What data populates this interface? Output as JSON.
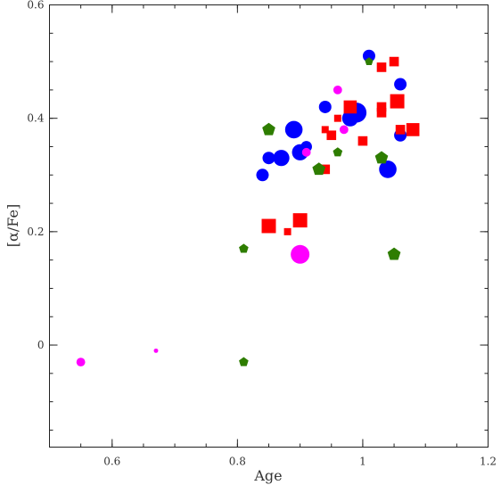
{
  "chart_data": {
    "type": "scatter",
    "title": "",
    "xlabel": "Age",
    "ylabel": "[α/Fe]",
    "xlim": [
      0.5,
      1.2
    ],
    "ylim": [
      -0.18,
      0.6
    ],
    "grid": false,
    "x_ticks": [
      0.6,
      0.8,
      1,
      1.2
    ],
    "x_tick_labels": [
      "0.6",
      "0.8",
      "1",
      "1.2"
    ],
    "x_minor_step": 0.05,
    "y_ticks": [
      0,
      0.2,
      0.4,
      0.6
    ],
    "y_tick_labels": [
      "0",
      "0.2",
      "0.4",
      "0.6"
    ],
    "y_minor_step": 0.05,
    "series": [
      {
        "marker": "circle",
        "color": "#0000ff",
        "points": [
          {
            "x": 1.01,
            "y": 0.51,
            "size": 1.0
          },
          {
            "x": 1.06,
            "y": 0.46,
            "size": 1.0
          },
          {
            "x": 0.94,
            "y": 0.42,
            "size": 1.0
          },
          {
            "x": 0.99,
            "y": 0.41,
            "size": 1.6
          },
          {
            "x": 0.98,
            "y": 0.4,
            "size": 1.3
          },
          {
            "x": 0.89,
            "y": 0.38,
            "size": 1.4
          },
          {
            "x": 1.06,
            "y": 0.37,
            "size": 1.0
          },
          {
            "x": 0.91,
            "y": 0.35,
            "size": 0.9
          },
          {
            "x": 0.9,
            "y": 0.34,
            "size": 1.3
          },
          {
            "x": 0.85,
            "y": 0.33,
            "size": 1.0
          },
          {
            "x": 0.87,
            "y": 0.33,
            "size": 1.3
          },
          {
            "x": 1.04,
            "y": 0.31,
            "size": 1.4
          },
          {
            "x": 0.84,
            "y": 0.3,
            "size": 1.0
          }
        ]
      },
      {
        "marker": "square",
        "color": "#ff0000",
        "points": [
          {
            "x": 1.05,
            "y": 0.5,
            "size": 0.8
          },
          {
            "x": 1.03,
            "y": 0.49,
            "size": 0.8
          },
          {
            "x": 1.055,
            "y": 0.43,
            "size": 1.2
          },
          {
            "x": 0.98,
            "y": 0.42,
            "size": 1.1
          },
          {
            "x": 1.03,
            "y": 0.42,
            "size": 0.8
          },
          {
            "x": 1.03,
            "y": 0.41,
            "size": 0.8
          },
          {
            "x": 0.96,
            "y": 0.4,
            "size": 0.6
          },
          {
            "x": 0.94,
            "y": 0.38,
            "size": 0.6
          },
          {
            "x": 1.06,
            "y": 0.38,
            "size": 0.8
          },
          {
            "x": 1.08,
            "y": 0.38,
            "size": 1.1
          },
          {
            "x": 0.95,
            "y": 0.37,
            "size": 0.8
          },
          {
            "x": 1.0,
            "y": 0.36,
            "size": 0.8
          },
          {
            "x": 0.94,
            "y": 0.31,
            "size": 0.8
          },
          {
            "x": 0.9,
            "y": 0.22,
            "size": 1.2
          },
          {
            "x": 0.85,
            "y": 0.21,
            "size": 1.2
          },
          {
            "x": 0.88,
            "y": 0.2,
            "size": 0.6
          }
        ]
      },
      {
        "marker": "circle",
        "color": "#ff00ff",
        "points": [
          {
            "x": 0.96,
            "y": 0.45,
            "size": 0.7
          },
          {
            "x": 0.97,
            "y": 0.38,
            "size": 0.7
          },
          {
            "x": 0.91,
            "y": 0.34,
            "size": 0.7
          },
          {
            "x": 0.9,
            "y": 0.16,
            "size": 1.5
          },
          {
            "x": 0.55,
            "y": -0.03,
            "size": 0.7
          },
          {
            "x": 0.67,
            "y": -0.01,
            "size": 0.35
          }
        ]
      },
      {
        "marker": "pentagon",
        "color": "#2e7d00",
        "points": [
          {
            "x": 1.01,
            "y": 0.5,
            "size": 0.7
          },
          {
            "x": 0.85,
            "y": 0.38,
            "size": 1.1
          },
          {
            "x": 0.96,
            "y": 0.34,
            "size": 0.8
          },
          {
            "x": 1.03,
            "y": 0.33,
            "size": 1.1
          },
          {
            "x": 0.93,
            "y": 0.31,
            "size": 1.1
          },
          {
            "x": 0.81,
            "y": 0.17,
            "size": 0.8
          },
          {
            "x": 1.05,
            "y": 0.16,
            "size": 1.1
          },
          {
            "x": 0.81,
            "y": -0.03,
            "size": 0.8
          }
        ]
      }
    ]
  }
}
